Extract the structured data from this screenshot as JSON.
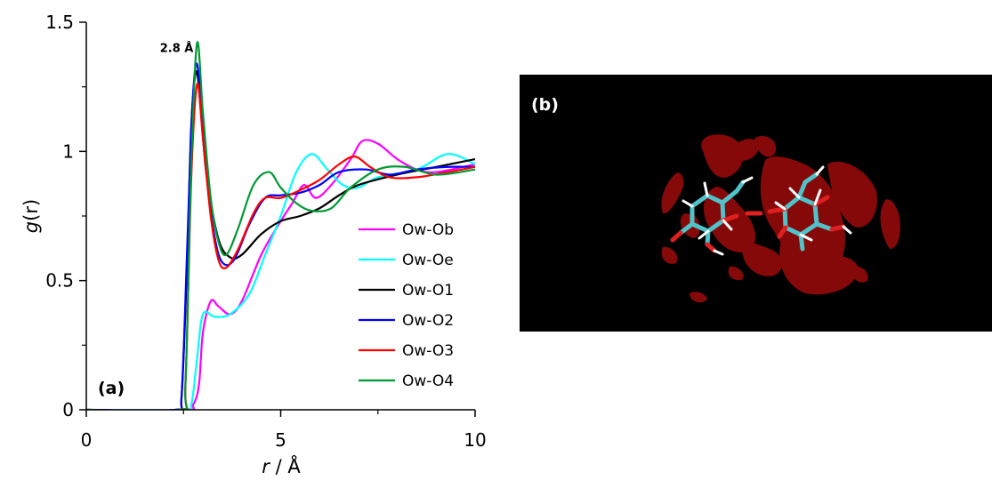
{
  "chart_data": {
    "type": "line",
    "panel_label": "(a)",
    "xlabel": {
      "italic": "r",
      "rest": " / Å"
    },
    "ylabel": {
      "italic": "g",
      "rest": "(r)"
    },
    "xlim": [
      0,
      10
    ],
    "ylim": [
      0,
      1.5
    ],
    "x_ticks": [
      0,
      5,
      10
    ],
    "x_tick_labels": [
      "0",
      "5",
      "10"
    ],
    "x_minor_ticks": [
      2.5,
      7.5
    ],
    "y_ticks": [
      0,
      0.5,
      1,
      1.5
    ],
    "y_tick_labels": [
      "0",
      "0.5",
      "1",
      "1.5"
    ],
    "y_minor_ticks": [
      0.25,
      0.75,
      1.25
    ],
    "legend_position": "right",
    "annotation": {
      "text": "2.8 Å",
      "x": 2.8,
      "y": 1.42
    },
    "series": [
      {
        "name": "Ow-Ob",
        "color": "#ff00ff",
        "points": [
          [
            0,
            0
          ],
          [
            2.5,
            0
          ],
          [
            2.75,
            0.02
          ],
          [
            2.9,
            0.1
          ],
          [
            3.0,
            0.3
          ],
          [
            3.2,
            0.42
          ],
          [
            3.4,
            0.4
          ],
          [
            3.7,
            0.37
          ],
          [
            4.0,
            0.42
          ],
          [
            4.5,
            0.6
          ],
          [
            5.0,
            0.73
          ],
          [
            5.3,
            0.8
          ],
          [
            5.6,
            0.87
          ],
          [
            5.9,
            0.82
          ],
          [
            6.3,
            0.87
          ],
          [
            6.8,
            0.97
          ],
          [
            7.1,
            1.04
          ],
          [
            7.5,
            1.03
          ],
          [
            8.0,
            0.97
          ],
          [
            8.5,
            0.93
          ],
          [
            9.0,
            0.92
          ],
          [
            10.0,
            0.95
          ]
        ]
      },
      {
        "name": "Ow-Oe",
        "color": "#00ffff",
        "points": [
          [
            0,
            0
          ],
          [
            2.5,
            0
          ],
          [
            2.7,
            0.02
          ],
          [
            2.85,
            0.2
          ],
          [
            3.0,
            0.37
          ],
          [
            3.3,
            0.36
          ],
          [
            3.7,
            0.37
          ],
          [
            4.2,
            0.45
          ],
          [
            4.6,
            0.6
          ],
          [
            5.0,
            0.75
          ],
          [
            5.4,
            0.92
          ],
          [
            5.8,
            0.99
          ],
          [
            6.2,
            0.93
          ],
          [
            6.6,
            0.87
          ],
          [
            7.0,
            0.86
          ],
          [
            7.5,
            0.9
          ],
          [
            8.5,
            0.93
          ],
          [
            9.3,
            0.99
          ],
          [
            10.0,
            0.95
          ]
        ]
      },
      {
        "name": "Ow-O1",
        "color": "#000000",
        "points": [
          [
            0,
            0
          ],
          [
            2.3,
            0
          ],
          [
            2.45,
            0.05
          ],
          [
            2.6,
            0.6
          ],
          [
            2.7,
            1.1
          ],
          [
            2.83,
            1.31
          ],
          [
            2.95,
            1.15
          ],
          [
            3.1,
            0.9
          ],
          [
            3.4,
            0.66
          ],
          [
            3.7,
            0.59
          ],
          [
            4.0,
            0.6
          ],
          [
            4.5,
            0.68
          ],
          [
            5.0,
            0.73
          ],
          [
            5.5,
            0.75
          ],
          [
            6.0,
            0.78
          ],
          [
            6.5,
            0.83
          ],
          [
            7.0,
            0.87
          ],
          [
            8.0,
            0.91
          ],
          [
            9.0,
            0.94
          ],
          [
            10.0,
            0.97
          ]
        ]
      },
      {
        "name": "Ow-O2",
        "color": "#0000ff",
        "points": [
          [
            0,
            0
          ],
          [
            2.3,
            0
          ],
          [
            2.45,
            0.05
          ],
          [
            2.6,
            0.65
          ],
          [
            2.72,
            1.15
          ],
          [
            2.83,
            1.34
          ],
          [
            2.95,
            1.2
          ],
          [
            3.1,
            0.9
          ],
          [
            3.3,
            0.67
          ],
          [
            3.5,
            0.57
          ],
          [
            3.8,
            0.58
          ],
          [
            4.2,
            0.72
          ],
          [
            4.6,
            0.82
          ],
          [
            5.0,
            0.83
          ],
          [
            5.5,
            0.84
          ],
          [
            6.0,
            0.87
          ],
          [
            6.5,
            0.92
          ],
          [
            7.2,
            0.93
          ],
          [
            7.8,
            0.91
          ],
          [
            8.5,
            0.93
          ],
          [
            9.3,
            0.94
          ],
          [
            10.0,
            0.94
          ]
        ]
      },
      {
        "name": "Ow-O3",
        "color": "#ff0000",
        "points": [
          [
            0,
            0
          ],
          [
            2.4,
            0
          ],
          [
            2.55,
            0.1
          ],
          [
            2.7,
            0.9
          ],
          [
            2.85,
            1.26
          ],
          [
            3.0,
            1.05
          ],
          [
            3.2,
            0.75
          ],
          [
            3.4,
            0.58
          ],
          [
            3.6,
            0.55
          ],
          [
            3.9,
            0.62
          ],
          [
            4.3,
            0.76
          ],
          [
            4.6,
            0.82
          ],
          [
            5.0,
            0.82
          ],
          [
            5.5,
            0.85
          ],
          [
            6.0,
            0.89
          ],
          [
            6.5,
            0.95
          ],
          [
            6.9,
            0.98
          ],
          [
            7.3,
            0.94
          ],
          [
            7.8,
            0.9
          ],
          [
            8.5,
            0.9
          ],
          [
            9.3,
            0.92
          ],
          [
            10.0,
            0.94
          ]
        ]
      },
      {
        "name": "Ow-O4",
        "color": "#009933",
        "points": [
          [
            0,
            0
          ],
          [
            2.4,
            0
          ],
          [
            2.55,
            0.1
          ],
          [
            2.7,
            0.95
          ],
          [
            2.85,
            1.42
          ],
          [
            3.0,
            1.15
          ],
          [
            3.2,
            0.82
          ],
          [
            3.4,
            0.65
          ],
          [
            3.6,
            0.6
          ],
          [
            3.9,
            0.7
          ],
          [
            4.3,
            0.87
          ],
          [
            4.7,
            0.92
          ],
          [
            5.0,
            0.86
          ],
          [
            5.4,
            0.8
          ],
          [
            5.8,
            0.77
          ],
          [
            6.3,
            0.78
          ],
          [
            6.8,
            0.86
          ],
          [
            7.5,
            0.93
          ],
          [
            8.2,
            0.94
          ],
          [
            9.0,
            0.91
          ],
          [
            10.0,
            0.93
          ]
        ]
      }
    ]
  },
  "panel_b": {
    "label": "(b)",
    "background_color": "#000000",
    "isosurface_color": "#8b0a0a"
  }
}
